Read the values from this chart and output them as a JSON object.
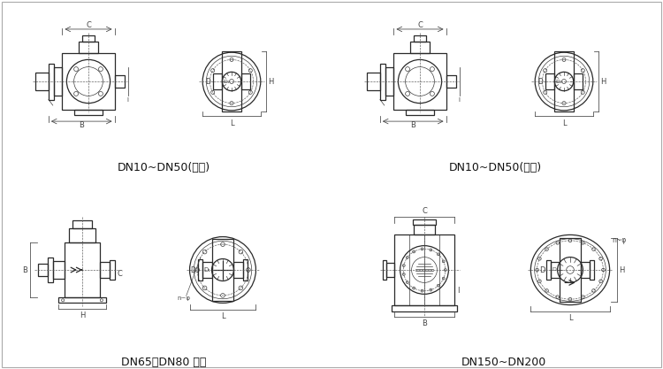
{
  "background": "#ffffff",
  "line_color": "#2a2a2a",
  "dim_color": "#444444",
  "thin_color": "#555555",
  "labels": {
    "top_left": "DN10~DN50(轻型)",
    "top_right": "DN10~DN50(轻型)",
    "bottom_left": "DN65、DN80 轻型",
    "bottom_right": "DN150~DN200"
  }
}
